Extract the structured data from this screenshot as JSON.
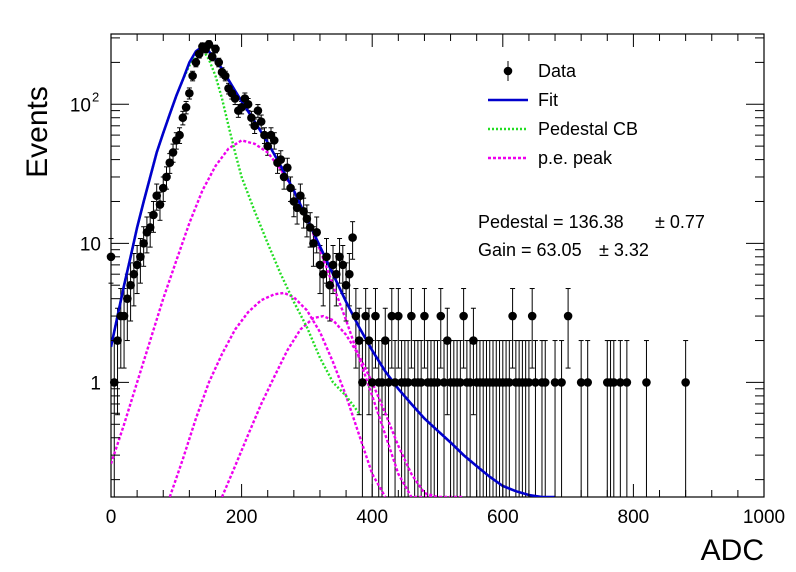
{
  "chart_data": {
    "type": "scatter",
    "xlabel": "ADC",
    "ylabel": "Events",
    "xlim": [
      0,
      1000
    ],
    "ylim": [
      0.15,
      320
    ],
    "yscale": "log",
    "x_ticks": [
      "0",
      "200",
      "400",
      "600",
      "800",
      "1000"
    ],
    "x_tick_values": [
      0,
      200,
      400,
      600,
      800,
      1000
    ],
    "y_ticks": [
      {
        "value": 1,
        "label": "1",
        "sup": ""
      },
      {
        "value": 10,
        "label": "10",
        "sup": ""
      },
      {
        "value": 100,
        "label": "10",
        "sup": "2"
      }
    ],
    "grid": false,
    "legend_position": "top-right",
    "legend": [
      {
        "label": "Data",
        "style": "marker",
        "color": "#000000"
      },
      {
        "label": "Fit",
        "style": "line",
        "color": "#0000cc"
      },
      {
        "label": "Pedestal CB",
        "style": "dotted",
        "color": "#22dd22"
      },
      {
        "label": "p.e. peak",
        "style": "dashed",
        "color": "#ee00ee"
      }
    ],
    "annotations": [
      "Pedestal = 136.38",
      "± 0.77",
      "Gain = 63.05",
      "± 3.32"
    ],
    "data": {
      "x": [
        0,
        5,
        10,
        15,
        20,
        25,
        30,
        35,
        40,
        45,
        50,
        55,
        60,
        65,
        70,
        75,
        80,
        85,
        90,
        95,
        100,
        105,
        110,
        115,
        120,
        125,
        130,
        135,
        140,
        145,
        150,
        155,
        160,
        165,
        170,
        175,
        180,
        185,
        190,
        195,
        200,
        205,
        210,
        215,
        220,
        225,
        230,
        235,
        240,
        245,
        250,
        255,
        260,
        265,
        270,
        275,
        280,
        285,
        290,
        295,
        300,
        305,
        310,
        315,
        320,
        325,
        330,
        335,
        340,
        345,
        350,
        355,
        360,
        365,
        370,
        375,
        380,
        385,
        390,
        395,
        400,
        405,
        410,
        415,
        420,
        425,
        430,
        435,
        440,
        445,
        450,
        455,
        460,
        465,
        470,
        475,
        480,
        485,
        490,
        495,
        500,
        505,
        510,
        515,
        520,
        525,
        530,
        535,
        540,
        545,
        550,
        555,
        560,
        565,
        570,
        575,
        580,
        585,
        590,
        595,
        600,
        605,
        610,
        615,
        620,
        625,
        630,
        635,
        640,
        645,
        650,
        660,
        665,
        680,
        690,
        700,
        720,
        730,
        760,
        765,
        770,
        780,
        790,
        820,
        880
      ],
      "y": [
        8,
        1,
        2,
        3,
        3,
        4,
        5,
        6,
        7,
        8,
        10,
        12,
        13,
        16,
        22,
        19,
        25,
        30,
        38,
        45,
        55,
        60,
        80,
        95,
        120,
        160,
        200,
        230,
        260,
        250,
        270,
        220,
        250,
        200,
        170,
        160,
        130,
        120,
        110,
        90,
        95,
        110,
        100,
        80,
        70,
        90,
        75,
        60,
        50,
        60,
        55,
        38,
        40,
        30,
        35,
        25,
        20,
        18,
        22,
        17,
        15,
        13,
        10,
        12,
        7,
        6,
        8,
        5,
        7,
        6,
        8,
        7,
        5,
        6,
        11,
        3,
        2,
        1,
        3,
        2,
        1,
        3,
        1,
        1,
        2,
        1,
        3,
        1,
        3,
        1,
        1,
        1,
        3,
        1,
        1,
        1,
        3,
        1,
        1,
        1,
        1,
        3,
        1,
        2,
        1,
        1,
        1,
        1,
        3,
        1,
        1,
        2,
        1,
        1,
        1,
        1,
        1,
        1,
        1,
        1,
        1,
        1,
        1,
        3,
        1,
        1,
        1,
        1,
        1,
        3,
        1,
        1,
        1,
        1,
        1,
        3,
        1,
        1,
        1,
        1,
        1,
        1,
        1,
        1,
        1
      ]
    },
    "fit": {
      "x": [
        0,
        10,
        20,
        30,
        40,
        50,
        60,
        70,
        80,
        90,
        100,
        110,
        120,
        130,
        140,
        150,
        160,
        170,
        180,
        190,
        200,
        220,
        240,
        260,
        280,
        300,
        320,
        340,
        360,
        380,
        400,
        420,
        440,
        460,
        480,
        500,
        520,
        540,
        560,
        580,
        600,
        620,
        640,
        660,
        680
      ],
      "y": [
        1.8,
        3,
        5,
        8,
        13,
        20,
        30,
        45,
        62,
        85,
        115,
        150,
        200,
        240,
        260,
        240,
        210,
        180,
        150,
        125,
        105,
        75,
        53,
        36,
        24,
        15,
        9.5,
        6,
        3.8,
        2.5,
        1.7,
        1.2,
        0.9,
        0.7,
        0.55,
        0.45,
        0.37,
        0.3,
        0.25,
        0.21,
        0.18,
        0.165,
        0.155,
        0.15,
        0.15
      ]
    },
    "pedestal_cb": {
      "x": [
        0,
        10,
        20,
        30,
        40,
        50,
        60,
        70,
        80,
        90,
        100,
        110,
        120,
        130,
        140,
        150,
        160,
        170,
        180,
        190,
        200,
        220,
        240,
        260,
        280,
        300,
        320,
        340,
        360,
        380
      ],
      "y": [
        1.8,
        3,
        5,
        8,
        13,
        20,
        30,
        45,
        62,
        85,
        115,
        150,
        190,
        230,
        250,
        210,
        160,
        110,
        70,
        45,
        30,
        17,
        10,
        6,
        3.8,
        2.5,
        1.5,
        1.0,
        0.8,
        0.6
      ]
    },
    "pe_peaks": [
      {
        "x": [
          0,
          20,
          40,
          60,
          80,
          100,
          120,
          140,
          160,
          180,
          200,
          220,
          240,
          260,
          280,
          300,
          320,
          340,
          360,
          380,
          400,
          420,
          440,
          460,
          480,
          500,
          520,
          540
        ],
        "y": [
          0.26,
          0.5,
          1,
          2,
          4,
          7.5,
          14,
          24,
          36,
          48,
          55,
          52,
          45,
          34,
          24,
          15,
          9,
          5,
          2.8,
          1.5,
          0.8,
          0.42,
          0.22,
          0.15,
          0.15,
          0.15,
          0.15,
          0.15
        ]
      },
      {
        "x": [
          90,
          110,
          130,
          150,
          170,
          190,
          210,
          230,
          250,
          265,
          280,
          300,
          320,
          340,
          360,
          380,
          400,
          420
        ],
        "y": [
          0.15,
          0.28,
          0.55,
          1.0,
          1.6,
          2.4,
          3.2,
          3.9,
          4.3,
          4.4,
          4.1,
          3.3,
          2.3,
          1.4,
          0.8,
          0.42,
          0.22,
          0.15
        ]
      },
      {
        "x": [
          170,
          190,
          210,
          230,
          250,
          270,
          290,
          310,
          325,
          340,
          360,
          380,
          400,
          420,
          440,
          460,
          480,
          500
        ],
        "y": [
          0.15,
          0.25,
          0.42,
          0.7,
          1.1,
          1.7,
          2.4,
          2.9,
          3.0,
          2.8,
          2.2,
          1.55,
          1.0,
          0.6,
          0.35,
          0.22,
          0.16,
          0.15
        ]
      }
    ]
  }
}
